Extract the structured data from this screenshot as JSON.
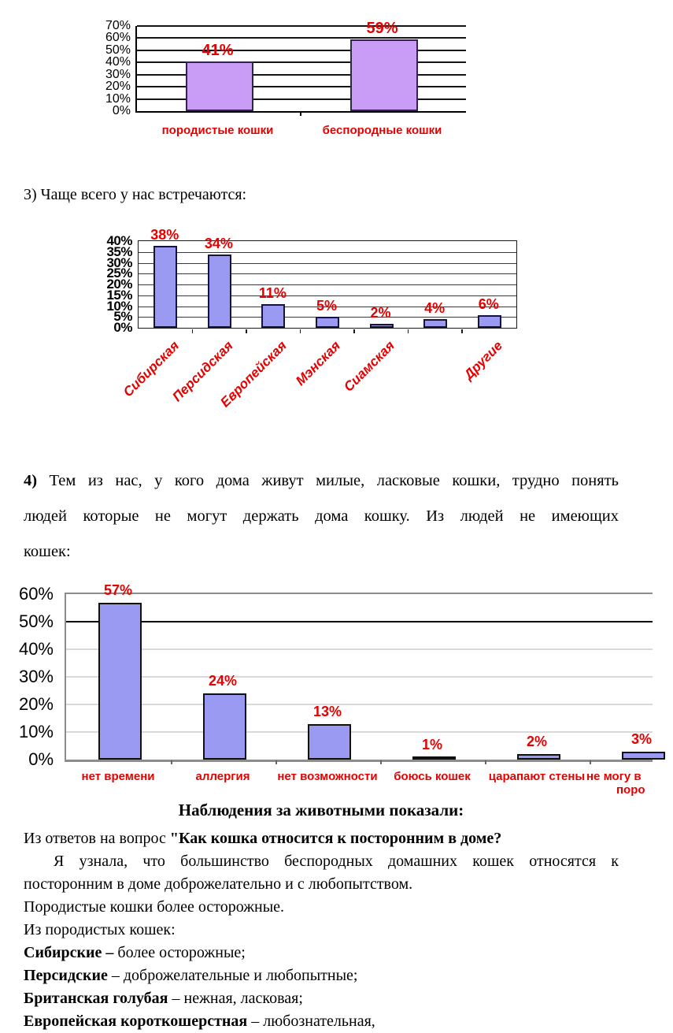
{
  "page": {
    "background": "#ffffff",
    "text_color": "#000000",
    "accent_red": "#e60000"
  },
  "section3": {
    "intro": "3) Чаще всего у нас встречаются:"
  },
  "section4": {
    "lines": [
      {
        "bold": "4)",
        "text": " Тем из нас, у кого дома живут милые, ласковые кошки, трудно понять"
      },
      {
        "text": "людей которые не могут держать дома кошку. Из людей  не имеющих"
      },
      {
        "text": "кошек:"
      }
    ]
  },
  "observations": {
    "heading": "Наблюдения за животными показали:",
    "question_prefix": "Из ответов на вопрос ",
    "question_bold": "\"Как кошка относится к посторонним в доме?",
    "para2_lines": [
      "Я узнала, что большинство беспородных домашних кошек относятся к",
      "посторонним в доме доброжелательно и с любопытством."
    ],
    "para3": "Породистые кошки более осторожные.",
    "para4": "Из породистых кошек:",
    "items": [
      {
        "bold": "Сибирские –",
        "rest": " более осторожные;"
      },
      {
        "bold": "Персидские",
        "rest": " – доброжелательные и любопытные;"
      },
      {
        "bold": "Британская голубая",
        "rest": " – нежная, ласковая;"
      },
      {
        "bold": "Европейская короткошерстная",
        "rest": " – любознательная,"
      }
    ]
  },
  "chart_data": [
    {
      "type": "bar",
      "title": "",
      "categories": [
        "породистые кошки",
        "беспородные кошки"
      ],
      "values": [
        41,
        59
      ],
      "value_labels": [
        "41%",
        "59%"
      ],
      "yticks": [
        "70%",
        "60%",
        "50%",
        "40%",
        "30%",
        "20%",
        "10%",
        "0%"
      ],
      "ylim": [
        0,
        70
      ],
      "grid": true,
      "legend": false,
      "bar_fill": "#c99df5",
      "bar_border": "#31254a",
      "value_label_color": "#e60000",
      "category_label_color": "#e60000",
      "grid_color": "#151515",
      "axis_color": "#000000"
    },
    {
      "type": "bar",
      "title": "",
      "categories": [
        "Сибирская",
        "Персидская",
        "Европейская",
        "Мэнская",
        "Сиамская",
        "",
        "Другие"
      ],
      "values": [
        38,
        34,
        11,
        5,
        2,
        4,
        6
      ],
      "value_labels": [
        "38%",
        "34%",
        "11%",
        "5%",
        "2%",
        "4%",
        "6%"
      ],
      "yticks": [
        "40%",
        "35%",
        "30%",
        "25%",
        "20%",
        "15%",
        "10%",
        "5%",
        "0%"
      ],
      "ylim": [
        0,
        40
      ],
      "grid": true,
      "legend": false,
      "bar_fill": "#9a9af2",
      "bar_border": "#14143c",
      "value_label_color": "#e60000",
      "category_label_color": "#e60000",
      "grid_color": "#3a3a3a",
      "axis_color": "#1a1a1a"
    },
    {
      "type": "bar",
      "title": "",
      "categories": [
        "нет времени",
        "аллергия",
        "нет возможности",
        "боюсь кошек",
        "царапают стены",
        [
          "не могу в",
          "поро"
        ]
      ],
      "values": [
        57,
        24,
        13,
        1,
        2,
        3
      ],
      "value_labels": [
        "57%",
        "24%",
        "13%",
        "1%",
        "2%",
        "3%"
      ],
      "yticks": [
        "60%",
        "50%",
        "40%",
        "30%",
        "20%",
        "10%",
        "0%"
      ],
      "ylim": [
        0,
        60
      ],
      "grid": true,
      "legend": false,
      "bold_gridline_value": 50,
      "bold_gridline_color": "#000000",
      "bar_fill": "#9a9af2",
      "bar_border": "#111111",
      "value_label_color": "#e60000",
      "category_label_color": "#e60000",
      "grid_color": "#d9d9d9",
      "axis_color": "#8c8c8c"
    }
  ]
}
